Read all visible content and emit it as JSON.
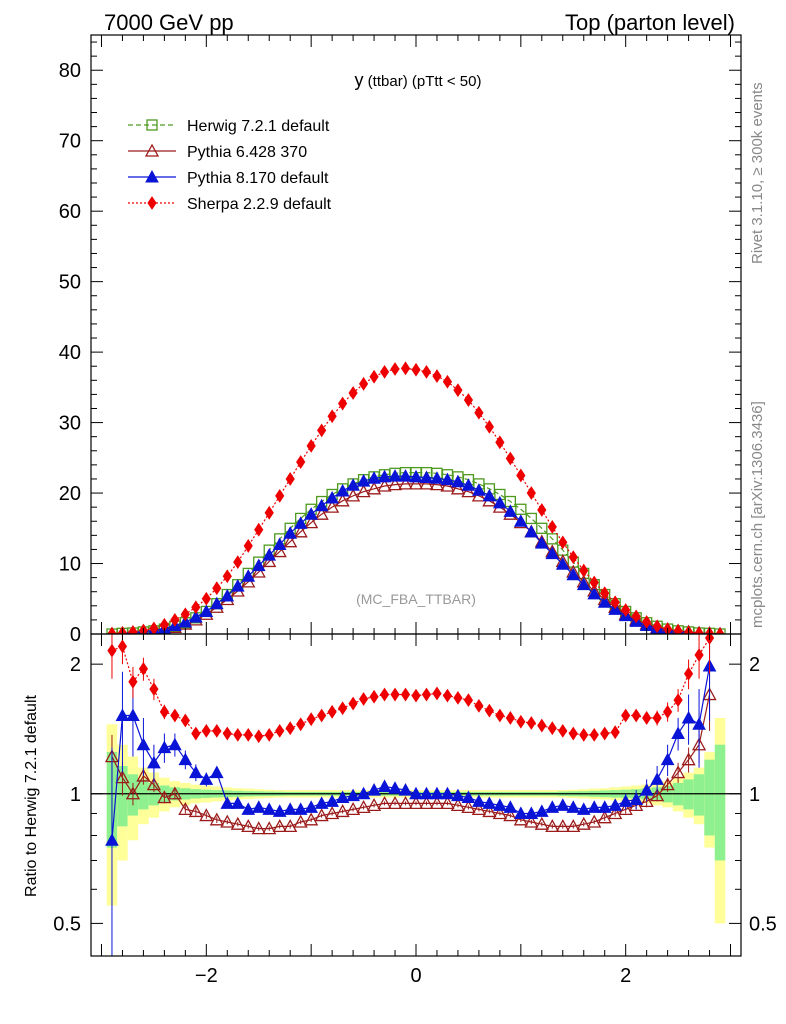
{
  "header": {
    "left": "7000 GeV pp",
    "right": "Top (parton level)"
  },
  "side": {
    "rivet": "Rivet 3.1.10, ≥ 300k events",
    "mcplots": "mcplots.cern.ch [arXiv:1306.3436]"
  },
  "chart_data": {
    "type": "line",
    "title_main": "y",
    "title_rest": " (ttbar)  (pTtt < 50)",
    "watermark": "(MC_FBA_TTBAR)",
    "xlabel": "",
    "ylabel": "",
    "xlim": [
      -3.1,
      3.1
    ],
    "ylim": [
      0,
      85
    ],
    "x_ticks": [
      "−2",
      "0",
      "2"
    ],
    "y_ticks": [
      "0",
      "10",
      "20",
      "30",
      "40",
      "50",
      "60",
      "70",
      "80"
    ],
    "x": [
      -2.9,
      -2.8,
      -2.7,
      -2.6,
      -2.5,
      -2.4,
      -2.3,
      -2.2,
      -2.1,
      -2.0,
      -1.9,
      -1.8,
      -1.7,
      -1.6,
      -1.5,
      -1.4,
      -1.3,
      -1.2,
      -1.1,
      -1.0,
      -0.9,
      -0.8,
      -0.7,
      -0.6,
      -0.5,
      -0.4,
      -0.3,
      -0.2,
      -0.1,
      0.0,
      0.1,
      0.2,
      0.3,
      0.4,
      0.5,
      0.6,
      0.7,
      0.8,
      0.9,
      1.0,
      1.1,
      1.2,
      1.3,
      1.4,
      1.5,
      1.6,
      1.7,
      1.8,
      1.9,
      2.0,
      2.1,
      2.2,
      2.3,
      2.4,
      2.5,
      2.6,
      2.7,
      2.8,
      2.9
    ],
    "series": [
      {
        "name": "Herwig 7.2.1 default",
        "color": "#4d9a1e",
        "marker": "open-square",
        "dash": "dashed",
        "values": [
          0.0,
          0.1,
          0.15,
          0.3,
          0.45,
          0.7,
          1.1,
          1.6,
          2.3,
          3.2,
          4.3,
          5.6,
          7.0,
          8.6,
          10.2,
          11.9,
          13.5,
          15.0,
          16.4,
          17.7,
          18.8,
          19.8,
          20.6,
          21.3,
          21.9,
          22.3,
          22.6,
          22.8,
          22.9,
          22.9,
          22.9,
          22.8,
          22.6,
          22.3,
          21.9,
          21.3,
          20.6,
          19.8,
          18.8,
          17.7,
          16.4,
          15.0,
          13.5,
          11.9,
          10.2,
          8.6,
          7.0,
          5.6,
          4.3,
          3.2,
          2.3,
          1.6,
          1.1,
          0.7,
          0.45,
          0.3,
          0.15,
          0.1,
          0.0
        ]
      },
      {
        "name": "Pythia 6.428 370",
        "color": "#9b1b1b",
        "marker": "open-triangle",
        "dash": "solid",
        "values": [
          0.0,
          0.1,
          0.15,
          0.3,
          0.45,
          0.65,
          0.95,
          1.4,
          2.0,
          2.8,
          3.8,
          4.9,
          6.1,
          7.4,
          8.8,
          10.3,
          11.7,
          13.1,
          14.5,
          15.8,
          17.0,
          18.0,
          18.9,
          19.6,
          20.2,
          20.6,
          21.0,
          21.2,
          21.3,
          21.3,
          21.3,
          21.2,
          21.0,
          20.6,
          20.2,
          19.6,
          18.9,
          18.0,
          17.0,
          15.8,
          14.5,
          13.1,
          11.7,
          10.3,
          8.8,
          7.4,
          6.1,
          4.9,
          3.8,
          2.8,
          2.0,
          1.4,
          0.95,
          0.65,
          0.45,
          0.3,
          0.15,
          0.1,
          0.0
        ]
      },
      {
        "name": "Pythia 8.170 default",
        "color": "#0a14d6",
        "marker": "filled-triangle",
        "dash": "solid",
        "values": [
          0.0,
          0.1,
          0.2,
          0.35,
          0.5,
          0.8,
          1.2,
          1.7,
          2.4,
          3.2,
          4.3,
          5.4,
          6.8,
          8.2,
          9.7,
          11.2,
          12.7,
          14.3,
          15.7,
          17.0,
          18.2,
          19.3,
          20.3,
          21.1,
          21.7,
          22.1,
          22.3,
          22.4,
          22.4,
          22.3,
          22.2,
          22.1,
          21.9,
          21.6,
          21.1,
          20.4,
          19.6,
          18.6,
          17.4,
          16.0,
          14.5,
          12.9,
          11.4,
          9.9,
          8.4,
          7.0,
          5.7,
          4.5,
          3.5,
          2.6,
          1.8,
          1.2,
          0.8,
          0.5,
          0.35,
          0.2,
          0.1,
          0.05,
          0.0
        ]
      },
      {
        "name": "Sherpa 2.2.9 default",
        "color": "#ee0000",
        "marker": "filled-diamond",
        "dash": "dotted",
        "values": [
          0.05,
          0.15,
          0.3,
          0.5,
          0.8,
          1.3,
          2.0,
          2.8,
          3.8,
          5.0,
          6.5,
          8.2,
          10.2,
          12.5,
          14.8,
          17.2,
          19.6,
          22.0,
          24.4,
          26.7,
          28.9,
          30.9,
          32.7,
          34.2,
          35.5,
          36.5,
          37.2,
          37.6,
          37.7,
          37.5,
          37.2,
          36.6,
          35.8,
          34.6,
          33.2,
          31.4,
          29.4,
          27.2,
          24.9,
          22.5,
          20.0,
          17.6,
          15.2,
          13.0,
          10.9,
          9.0,
          7.3,
          5.8,
          4.5,
          3.4,
          2.5,
          1.7,
          1.1,
          0.7,
          0.45,
          0.25,
          0.12,
          0.05,
          0.0
        ]
      }
    ],
    "ratio": {
      "ylabel": "Ratio to Herwig 7.2.1 default",
      "ylim": [
        0.42,
        2.35
      ],
      "y_ticks": [
        "0.5",
        "1",
        "2"
      ],
      "x": [
        -2.9,
        -2.8,
        -2.7,
        -2.6,
        -2.5,
        -2.4,
        -2.3,
        -2.2,
        -2.1,
        -2.0,
        -1.9,
        -1.8,
        -1.7,
        -1.6,
        -1.5,
        -1.4,
        -1.3,
        -1.2,
        -1.1,
        -1.0,
        -0.9,
        -0.8,
        -0.7,
        -0.6,
        -0.5,
        -0.4,
        -0.3,
        -0.2,
        -0.1,
        0.0,
        0.1,
        0.2,
        0.3,
        0.4,
        0.5,
        0.6,
        0.7,
        0.8,
        0.9,
        1.0,
        1.1,
        1.2,
        1.3,
        1.4,
        1.5,
        1.6,
        1.7,
        1.8,
        1.9,
        2.0,
        2.1,
        2.2,
        2.3,
        2.4,
        2.5,
        2.6,
        2.7,
        2.8,
        2.9
      ],
      "band_yellow_half": [
        0.45,
        0.3,
        0.22,
        0.15,
        0.12,
        0.09,
        0.07,
        0.06,
        0.05,
        0.045,
        0.04,
        0.035,
        0.03,
        0.028,
        0.025,
        0.022,
        0.02,
        0.02,
        0.02,
        0.02,
        0.02,
        0.02,
        0.02,
        0.02,
        0.02,
        0.02,
        0.02,
        0.02,
        0.02,
        0.02,
        0.02,
        0.02,
        0.02,
        0.02,
        0.02,
        0.02,
        0.02,
        0.02,
        0.02,
        0.02,
        0.02,
        0.02,
        0.02,
        0.02,
        0.022,
        0.025,
        0.028,
        0.03,
        0.035,
        0.04,
        0.045,
        0.05,
        0.06,
        0.07,
        0.09,
        0.12,
        0.15,
        0.25,
        0.5
      ],
      "band_green_half": [
        0.25,
        0.16,
        0.11,
        0.08,
        0.06,
        0.045,
        0.035,
        0.03,
        0.025,
        0.022,
        0.02,
        0.018,
        0.016,
        0.014,
        0.013,
        0.012,
        0.011,
        0.01,
        0.01,
        0.01,
        0.01,
        0.01,
        0.01,
        0.01,
        0.01,
        0.01,
        0.01,
        0.01,
        0.01,
        0.01,
        0.01,
        0.01,
        0.01,
        0.01,
        0.01,
        0.01,
        0.01,
        0.01,
        0.01,
        0.01,
        0.01,
        0.01,
        0.01,
        0.012,
        0.013,
        0.014,
        0.016,
        0.018,
        0.02,
        0.022,
        0.025,
        0.03,
        0.035,
        0.045,
        0.06,
        0.08,
        0.11,
        0.2,
        0.3
      ],
      "series": [
        {
          "name": "Pythia 6.428 370",
          "color": "#9b1b1b",
          "marker": "open-triangle",
          "dash": "solid",
          "values": [
            1.22,
            1.09,
            1.0,
            1.1,
            1.05,
            0.98,
            1.0,
            0.92,
            0.91,
            0.89,
            0.87,
            0.86,
            0.85,
            0.84,
            0.83,
            0.83,
            0.84,
            0.84,
            0.86,
            0.87,
            0.89,
            0.9,
            0.91,
            0.92,
            0.93,
            0.94,
            0.95,
            0.95,
            0.95,
            0.95,
            0.95,
            0.95,
            0.95,
            0.94,
            0.93,
            0.92,
            0.91,
            0.9,
            0.89,
            0.87,
            0.86,
            0.85,
            0.84,
            0.84,
            0.84,
            0.85,
            0.86,
            0.88,
            0.9,
            0.92,
            0.94,
            0.96,
            0.99,
            1.05,
            1.12,
            1.2,
            1.3,
            1.7,
            0.0
          ],
          "err": [
            0.15,
            0.1,
            0.06,
            0.05,
            0.04,
            0.03,
            0.03,
            0.02,
            0.02,
            0.015,
            0.015,
            0.01,
            0.01,
            0.01,
            0.01,
            0.01,
            0.01,
            0.01,
            0.01,
            0.01,
            0.01,
            0.01,
            0.01,
            0.01,
            0.01,
            0.01,
            0.01,
            0.01,
            0.01,
            0.01,
            0.01,
            0.01,
            0.01,
            0.01,
            0.01,
            0.01,
            0.01,
            0.01,
            0.01,
            0.01,
            0.01,
            0.01,
            0.01,
            0.01,
            0.01,
            0.01,
            0.01,
            0.015,
            0.015,
            0.02,
            0.02,
            0.03,
            0.03,
            0.04,
            0.06,
            0.08,
            0.12,
            0.3,
            0.0
          ]
        },
        {
          "name": "Pythia 8.170 default",
          "color": "#0a14d6",
          "marker": "filled-triangle",
          "dash": "solid",
          "values": [
            0.78,
            1.52,
            1.52,
            1.3,
            1.18,
            1.28,
            1.3,
            1.2,
            1.12,
            1.08,
            1.12,
            0.95,
            0.95,
            0.92,
            0.93,
            0.92,
            0.91,
            0.92,
            0.92,
            0.93,
            0.95,
            0.96,
            0.98,
            0.99,
            1.0,
            1.02,
            1.04,
            1.03,
            1.02,
            1.0,
            1.0,
            1.0,
            1.0,
            0.99,
            0.98,
            0.96,
            0.95,
            0.94,
            0.93,
            0.9,
            0.9,
            0.91,
            0.93,
            0.94,
            0.93,
            0.92,
            0.93,
            0.93,
            0.94,
            0.96,
            0.97,
            1.02,
            1.08,
            1.2,
            1.38,
            1.5,
            1.45,
            1.98,
            0.0
          ],
          "err": [
            0.5,
            0.4,
            0.3,
            0.2,
            0.12,
            0.1,
            0.08,
            0.06,
            0.05,
            0.04,
            0.03,
            0.025,
            0.02,
            0.02,
            0.02,
            0.015,
            0.015,
            0.015,
            0.015,
            0.015,
            0.015,
            0.015,
            0.015,
            0.015,
            0.015,
            0.015,
            0.015,
            0.015,
            0.015,
            0.015,
            0.015,
            0.015,
            0.015,
            0.015,
            0.015,
            0.015,
            0.015,
            0.015,
            0.015,
            0.015,
            0.015,
            0.015,
            0.015,
            0.015,
            0.02,
            0.02,
            0.02,
            0.025,
            0.03,
            0.04,
            0.05,
            0.06,
            0.08,
            0.1,
            0.12,
            0.2,
            0.3,
            0.5,
            0.0
          ]
        },
        {
          "name": "Sherpa 2.2.9 default",
          "color": "#ee0000",
          "marker": "filled-diamond",
          "dash": "dotted",
          "values": [
            2.15,
            2.2,
            1.82,
            1.95,
            1.75,
            1.55,
            1.52,
            1.48,
            1.38,
            1.4,
            1.4,
            1.38,
            1.37,
            1.37,
            1.36,
            1.37,
            1.4,
            1.42,
            1.45,
            1.49,
            1.52,
            1.55,
            1.58,
            1.62,
            1.66,
            1.68,
            1.7,
            1.7,
            1.7,
            1.69,
            1.7,
            1.71,
            1.69,
            1.67,
            1.65,
            1.6,
            1.56,
            1.52,
            1.5,
            1.47,
            1.46,
            1.44,
            1.42,
            1.4,
            1.38,
            1.37,
            1.37,
            1.38,
            1.39,
            1.52,
            1.52,
            1.5,
            1.5,
            1.55,
            1.65,
            1.9,
            2.1,
            2.3,
            0.0
          ],
          "err": [
            0.3,
            0.2,
            0.15,
            0.12,
            0.1,
            0.06,
            0.05,
            0.04,
            0.03,
            0.02,
            0.02,
            0.02,
            0.015,
            0.015,
            0.015,
            0.015,
            0.015,
            0.015,
            0.015,
            0.015,
            0.015,
            0.015,
            0.015,
            0.015,
            0.015,
            0.015,
            0.015,
            0.015,
            0.015,
            0.015,
            0.015,
            0.015,
            0.015,
            0.015,
            0.015,
            0.015,
            0.015,
            0.015,
            0.015,
            0.015,
            0.015,
            0.015,
            0.015,
            0.015,
            0.015,
            0.015,
            0.015,
            0.02,
            0.02,
            0.03,
            0.04,
            0.05,
            0.06,
            0.08,
            0.1,
            0.15,
            0.25,
            0.4,
            0.0
          ]
        }
      ]
    }
  }
}
